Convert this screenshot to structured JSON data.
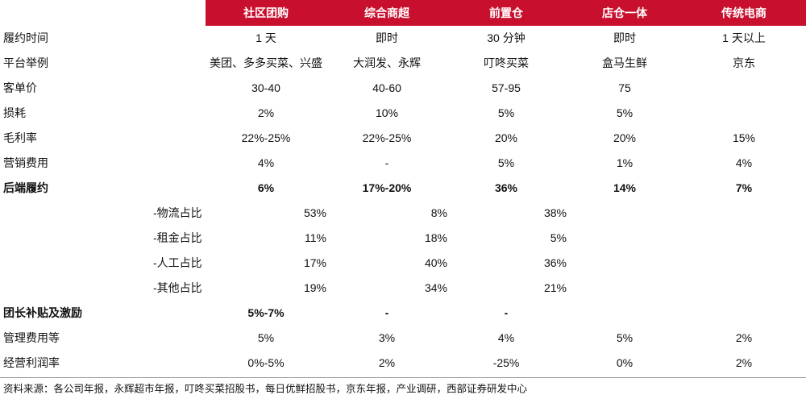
{
  "header": [
    "社区团购",
    "综合商超",
    "前置仓",
    "店仓一体",
    "传统电商"
  ],
  "rows": [
    {
      "label": "履约时间",
      "cells": [
        "1 天",
        "即时",
        "30 分钟",
        "即时",
        "1 天以上"
      ]
    },
    {
      "label": "平台举例",
      "cells": [
        "美团、多多买菜、兴盛",
        "大润发、永辉",
        "叮咚买菜",
        "盒马生鲜",
        "京东"
      ]
    },
    {
      "label": "客单价",
      "cells": [
        "30-40",
        "40-60",
        "57-95",
        "75",
        null
      ]
    },
    {
      "label": "损耗",
      "cells": [
        "2%",
        "10%",
        "5%",
        "5%",
        null
      ]
    },
    {
      "label": "毛利率",
      "cells": [
        "22%-25%",
        "22%-25%",
        "20%",
        "20%",
        "15%"
      ]
    },
    {
      "label": "营销费用",
      "cells": [
        "4%",
        "-",
        "5%",
        "1%",
        "4%"
      ]
    },
    {
      "label": "后端履约",
      "style": "bold",
      "cells": [
        "6%",
        "17%-20%",
        "36%",
        "14%",
        "7%"
      ]
    },
    {
      "label": "-物流占比",
      "style": "sub",
      "cells": [
        "53%",
        "8%",
        "38%"
      ]
    },
    {
      "label": "-租金占比",
      "style": "sub",
      "cells": [
        "11%",
        "18%",
        "5%"
      ]
    },
    {
      "label": "-人工占比",
      "style": "sub",
      "cells": [
        "17%",
        "40%",
        "36%"
      ]
    },
    {
      "label": "-其他占比",
      "style": "sub",
      "cells": [
        "19%",
        "34%",
        "21%"
      ]
    },
    {
      "label": "团长补贴及激励",
      "style": "bold",
      "cells": [
        "5%-7%",
        "-",
        "-"
      ]
    },
    {
      "label": "管理费用等",
      "cells": [
        "5%",
        "3%",
        "4%",
        "5%",
        "2%"
      ]
    },
    {
      "label": "经营利润率",
      "cells": [
        "0%-5%",
        "2%",
        "-25%",
        "0%",
        "2%"
      ]
    }
  ],
  "source": "资料来源：各公司年报，永辉超市年报，叮咚买菜招股书，每日优鲜招股书，京东年报，产业调研，西部证券研发中心"
}
